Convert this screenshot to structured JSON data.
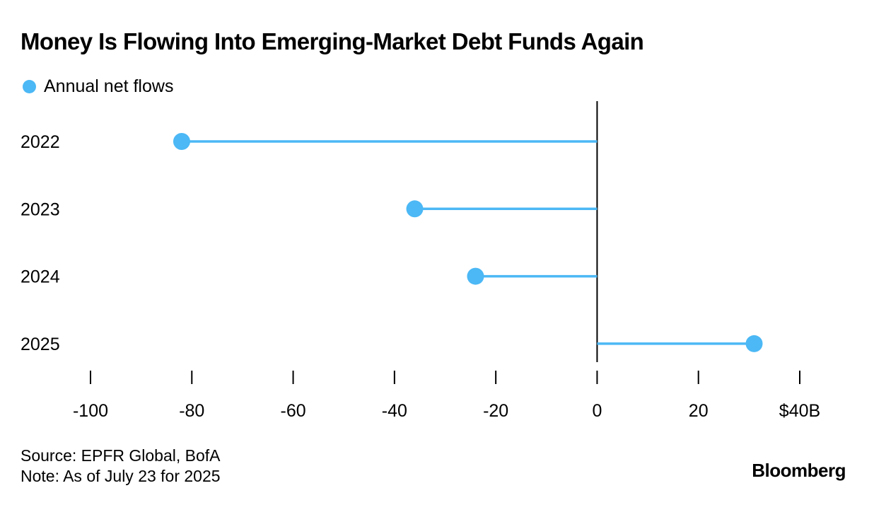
{
  "chart_data": {
    "type": "lollipop",
    "title": "Money Is Flowing Into Emerging-Market Debt Funds Again",
    "series": [
      {
        "name": "Annual net flows",
        "color": "#4cb8f5"
      }
    ],
    "categories": [
      "2022",
      "2023",
      "2024",
      "2025"
    ],
    "values": [
      -82,
      -36,
      -24,
      31
    ],
    "xlim": [
      -100,
      40
    ],
    "xticks": [
      -100,
      -80,
      -60,
      -40,
      -20,
      0,
      20,
      40
    ],
    "xtick_labels": [
      "-100",
      "-80",
      "-60",
      "-40",
      "-20",
      "0",
      "20",
      "$40B"
    ],
    "grid": false,
    "legend_position": "top-left"
  },
  "footer": {
    "source": "Source: EPFR Global, BofA",
    "note": "Note: As of July 23 for 2025"
  },
  "brand": "Bloomberg",
  "colors": {
    "accent": "#4cb8f5",
    "zero_line": "#000000"
  }
}
